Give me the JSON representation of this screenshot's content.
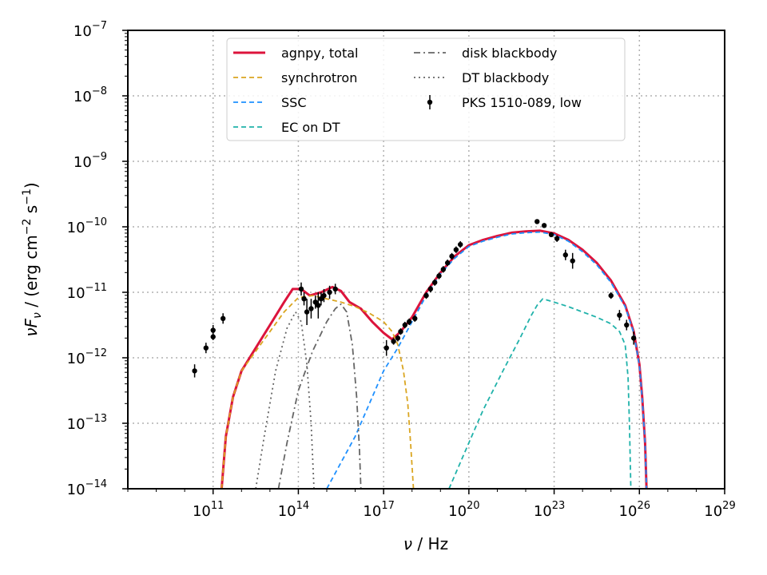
{
  "chart_data": {
    "type": "line",
    "title": "",
    "xlabel_html": "ν / Hz",
    "ylabel_html": "νF_ν / (erg cm^-2 s^-1)",
    "x_scale": "log",
    "y_scale": "log",
    "xlim_exp": [
      8,
      29
    ],
    "ylim_exp": [
      -14,
      -7
    ],
    "grid": true,
    "legend_position": "top-center",
    "x_tick_exponents": [
      11,
      14,
      17,
      20,
      23,
      26,
      29
    ],
    "y_tick_exponents": [
      -14,
      -13,
      -12,
      -11,
      -10,
      -9,
      -8,
      -7
    ],
    "series": [
      {
        "name": "agnpy, total",
        "style": "solid",
        "color": "#dc143c",
        "points": [
          [
            11.3,
            -14
          ],
          [
            11.45,
            -13.2
          ],
          [
            11.7,
            -12.6
          ],
          [
            12,
            -12.2
          ],
          [
            12.5,
            -11.85
          ],
          [
            13,
            -11.5
          ],
          [
            13.5,
            -11.15
          ],
          [
            13.8,
            -10.95
          ],
          [
            14.1,
            -10.95
          ],
          [
            14.4,
            -11.05
          ],
          [
            14.8,
            -11.0
          ],
          [
            15.2,
            -10.92
          ],
          [
            15.5,
            -10.98
          ],
          [
            15.8,
            -11.15
          ],
          [
            16.2,
            -11.25
          ],
          [
            16.6,
            -11.45
          ],
          [
            17.0,
            -11.62
          ],
          [
            17.3,
            -11.72
          ],
          [
            17.6,
            -11.6
          ],
          [
            18.0,
            -11.38
          ],
          [
            18.5,
            -11.0
          ],
          [
            19.0,
            -10.7
          ],
          [
            19.5,
            -10.45
          ],
          [
            20.0,
            -10.28
          ],
          [
            20.5,
            -10.2
          ],
          [
            21.0,
            -10.14
          ],
          [
            21.5,
            -10.09
          ],
          [
            22.0,
            -10.07
          ],
          [
            22.5,
            -10.06
          ],
          [
            23.0,
            -10.1
          ],
          [
            23.5,
            -10.2
          ],
          [
            24.0,
            -10.35
          ],
          [
            24.5,
            -10.55
          ],
          [
            25.0,
            -10.82
          ],
          [
            25.5,
            -11.2
          ],
          [
            25.8,
            -11.6
          ],
          [
            26.0,
            -12.1
          ],
          [
            26.1,
            -12.6
          ],
          [
            26.2,
            -13.3
          ],
          [
            26.25,
            -14
          ]
        ]
      },
      {
        "name": "synchrotron",
        "style": "dashed",
        "color": "#daa520",
        "points": [
          [
            11.3,
            -14
          ],
          [
            11.45,
            -13.2
          ],
          [
            11.7,
            -12.6
          ],
          [
            12,
            -12.2
          ],
          [
            12.5,
            -11.9
          ],
          [
            13,
            -11.6
          ],
          [
            13.5,
            -11.3
          ],
          [
            14.0,
            -11.08
          ],
          [
            14.5,
            -11.05
          ],
          [
            15.0,
            -11.1
          ],
          [
            15.5,
            -11.15
          ],
          [
            16.0,
            -11.22
          ],
          [
            16.5,
            -11.32
          ],
          [
            17.0,
            -11.45
          ],
          [
            17.3,
            -11.6
          ],
          [
            17.5,
            -11.8
          ],
          [
            17.7,
            -12.2
          ],
          [
            17.85,
            -12.7
          ],
          [
            17.95,
            -13.3
          ],
          [
            18.05,
            -14
          ]
        ]
      },
      {
        "name": "SSC",
        "style": "dashed",
        "color": "#1e90ff",
        "points": [
          [
            15.0,
            -14
          ],
          [
            16.0,
            -13.2
          ],
          [
            17.0,
            -12.2
          ],
          [
            17.5,
            -11.85
          ],
          [
            18.0,
            -11.45
          ],
          [
            18.5,
            -11.05
          ],
          [
            19.0,
            -10.72
          ],
          [
            19.5,
            -10.48
          ],
          [
            20.0,
            -10.3
          ],
          [
            20.5,
            -10.22
          ],
          [
            21.0,
            -10.16
          ],
          [
            21.5,
            -10.11
          ],
          [
            22.0,
            -10.09
          ],
          [
            22.5,
            -10.08
          ],
          [
            23.0,
            -10.12
          ],
          [
            23.5,
            -10.22
          ],
          [
            24.0,
            -10.38
          ],
          [
            24.5,
            -10.58
          ],
          [
            25.0,
            -10.85
          ],
          [
            25.5,
            -11.22
          ],
          [
            25.8,
            -11.62
          ],
          [
            26.0,
            -12.12
          ],
          [
            26.1,
            -12.62
          ],
          [
            26.2,
            -13.3
          ],
          [
            26.25,
            -14
          ]
        ]
      },
      {
        "name": "EC on DT",
        "style": "dashed",
        "color": "#20b2aa",
        "points": [
          [
            19.3,
            -14
          ],
          [
            19.8,
            -13.5
          ],
          [
            20.5,
            -12.8
          ],
          [
            21.2,
            -12.2
          ],
          [
            21.8,
            -11.7
          ],
          [
            22.2,
            -11.35
          ],
          [
            22.4,
            -11.2
          ],
          [
            22.6,
            -11.1
          ],
          [
            23.0,
            -11.15
          ],
          [
            23.5,
            -11.22
          ],
          [
            24.0,
            -11.3
          ],
          [
            24.5,
            -11.38
          ],
          [
            25.0,
            -11.48
          ],
          [
            25.3,
            -11.6
          ],
          [
            25.5,
            -11.8
          ],
          [
            25.6,
            -12.3
          ],
          [
            25.65,
            -13
          ],
          [
            25.7,
            -14
          ]
        ]
      },
      {
        "name": "disk blackbody",
        "style": "dashdot",
        "color": "#666666",
        "points": [
          [
            13.3,
            -14
          ],
          [
            13.6,
            -13.3
          ],
          [
            14.0,
            -12.5
          ],
          [
            14.5,
            -11.9
          ],
          [
            15.0,
            -11.45
          ],
          [
            15.3,
            -11.25
          ],
          [
            15.5,
            -11.18
          ],
          [
            15.7,
            -11.3
          ],
          [
            15.9,
            -11.8
          ],
          [
            16.05,
            -12.6
          ],
          [
            16.15,
            -13.4
          ],
          [
            16.2,
            -14
          ]
        ]
      },
      {
        "name": "DT blackbody",
        "style": "dotted",
        "color": "#666666",
        "points": [
          [
            12.5,
            -14
          ],
          [
            12.8,
            -13.2
          ],
          [
            13.2,
            -12.2
          ],
          [
            13.6,
            -11.55
          ],
          [
            13.9,
            -11.3
          ],
          [
            14.1,
            -11.45
          ],
          [
            14.3,
            -12.1
          ],
          [
            14.45,
            -13.0
          ],
          [
            14.55,
            -14
          ]
        ]
      }
    ],
    "observations": {
      "name": "PKS 1510-089, low",
      "color": "#000000",
      "points": [
        [
          10.35,
          -12.2,
          0.1
        ],
        [
          10.75,
          -11.85,
          0.08
        ],
        [
          11.0,
          -11.58,
          0.08
        ],
        [
          11.0,
          -11.68,
          0.05
        ],
        [
          11.35,
          -11.4,
          0.08
        ],
        [
          14.1,
          -10.95,
          0.1
        ],
        [
          14.2,
          -11.1,
          0.1
        ],
        [
          14.3,
          -11.3,
          0.2
        ],
        [
          14.45,
          -11.25,
          0.15
        ],
        [
          14.6,
          -11.15,
          0.1
        ],
        [
          14.7,
          -11.2,
          0.2
        ],
        [
          14.8,
          -11.1,
          0.1
        ],
        [
          14.9,
          -11.05,
          0.1
        ],
        [
          15.1,
          -11.0,
          0.1
        ],
        [
          15.3,
          -10.95,
          0.08
        ],
        [
          17.1,
          -11.85,
          0.12
        ],
        [
          17.35,
          -11.75,
          0.05
        ],
        [
          17.5,
          -11.7,
          0.05
        ],
        [
          17.6,
          -11.6,
          0.05
        ],
        [
          17.75,
          -11.5,
          0.05
        ],
        [
          17.9,
          -11.45,
          0.05
        ],
        [
          18.1,
          -11.4,
          0.05
        ],
        [
          18.5,
          -11.05,
          0.05
        ],
        [
          18.65,
          -10.95,
          0.05
        ],
        [
          18.8,
          -10.85,
          0.05
        ],
        [
          18.95,
          -10.75,
          0.05
        ],
        [
          19.1,
          -10.65,
          0.05
        ],
        [
          19.25,
          -10.55,
          0.05
        ],
        [
          19.4,
          -10.45,
          0.05
        ],
        [
          19.55,
          -10.35,
          0.05
        ],
        [
          19.7,
          -10.27,
          0.05
        ],
        [
          22.4,
          -9.92,
          0.03
        ],
        [
          22.65,
          -9.98,
          0.03
        ],
        [
          22.9,
          -10.12,
          0.03
        ],
        [
          23.1,
          -10.18,
          0.05
        ],
        [
          23.4,
          -10.43,
          0.08
        ],
        [
          23.65,
          -10.52,
          0.12
        ],
        [
          25.0,
          -11.05,
          0.05
        ],
        [
          25.3,
          -11.35,
          0.08
        ],
        [
          25.55,
          -11.5,
          0.08
        ],
        [
          25.8,
          -11.7,
          0.1
        ]
      ]
    }
  }
}
